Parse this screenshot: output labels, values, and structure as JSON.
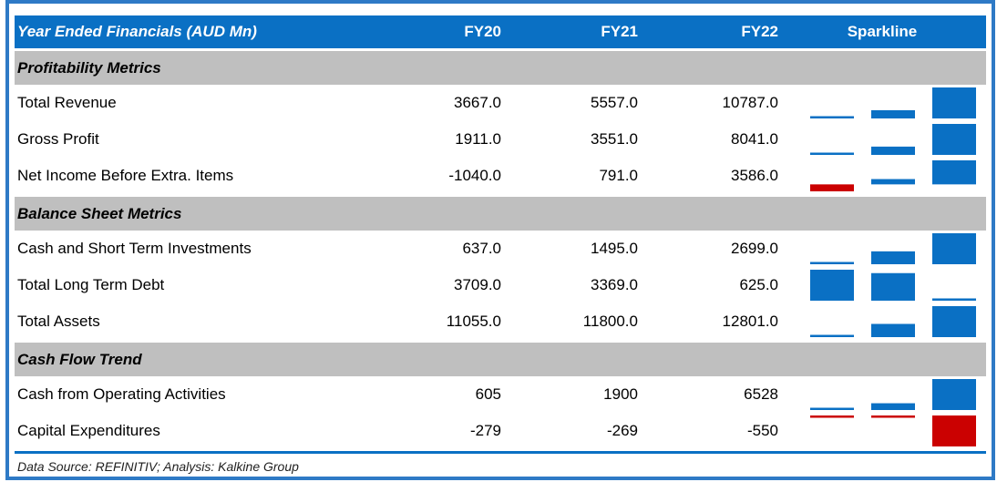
{
  "chart_data": {
    "type": "table",
    "title": "Year Ended Financials (AUD Mn)",
    "columns": [
      "FY20",
      "FY21",
      "FY22",
      "Sparkline"
    ],
    "sections": [
      {
        "title": "Profitability Metrics",
        "rows": [
          {
            "label": "Total Revenue",
            "display": [
              "3667.0",
              "5557.0",
              "10787.0"
            ],
            "values": [
              3667.0,
              5557.0,
              10787.0
            ]
          },
          {
            "label": "Gross Profit",
            "display": [
              "1911.0",
              "3551.0",
              "8041.0"
            ],
            "values": [
              1911.0,
              3551.0,
              8041.0
            ]
          },
          {
            "label": "Net Income Before Extra. Items",
            "display": [
              "-1040.0",
              "791.0",
              "3586.0"
            ],
            "values": [
              -1040.0,
              791.0,
              3586.0
            ]
          }
        ]
      },
      {
        "title": "Balance Sheet Metrics",
        "rows": [
          {
            "label": "Cash and Short Term Investments",
            "display": [
              "637.0",
              "1495.0",
              "2699.0"
            ],
            "values": [
              637.0,
              1495.0,
              2699.0
            ]
          },
          {
            "label": "Total Long Term Debt",
            "display": [
              "3709.0",
              "3369.0",
              "625.0"
            ],
            "values": [
              3709.0,
              3369.0,
              625.0
            ]
          },
          {
            "label": "Total Assets",
            "display": [
              "11055.0",
              "11800.0",
              "12801.0"
            ],
            "values": [
              11055.0,
              11800.0,
              12801.0
            ]
          }
        ]
      },
      {
        "title": "Cash Flow Trend",
        "rows": [
          {
            "label": "Cash from Operating Activities",
            "display": [
              "605",
              "1900",
              "6528"
            ],
            "values": [
              605,
              1900,
              6528
            ]
          },
          {
            "label": "Capital Expenditures",
            "display": [
              "-279",
              "-269",
              "-550"
            ],
            "values": [
              -279,
              -269,
              -550
            ]
          }
        ]
      }
    ],
    "sparkline": {
      "type": "bar",
      "scaling": "min-max-per-row",
      "series_per_row": [
        "FY20",
        "FY21",
        "FY22"
      ],
      "positive_color": "#0a70c4",
      "negative_color": "#cb0101"
    }
  },
  "footer": {
    "text": "Data Source: REFINITIV; Analysis: Kalkine Group"
  },
  "colors": {
    "header_bg": "#0a70c4",
    "header_text": "#ffffff",
    "section_bg": "#bfbfbf",
    "body_text": "#000000",
    "frame_border": "#2e7ac6",
    "footer_rule": "#0a70c4",
    "bar_positive": "#0a70c4",
    "bar_negative": "#cb0101",
    "background": "#ffffff"
  }
}
